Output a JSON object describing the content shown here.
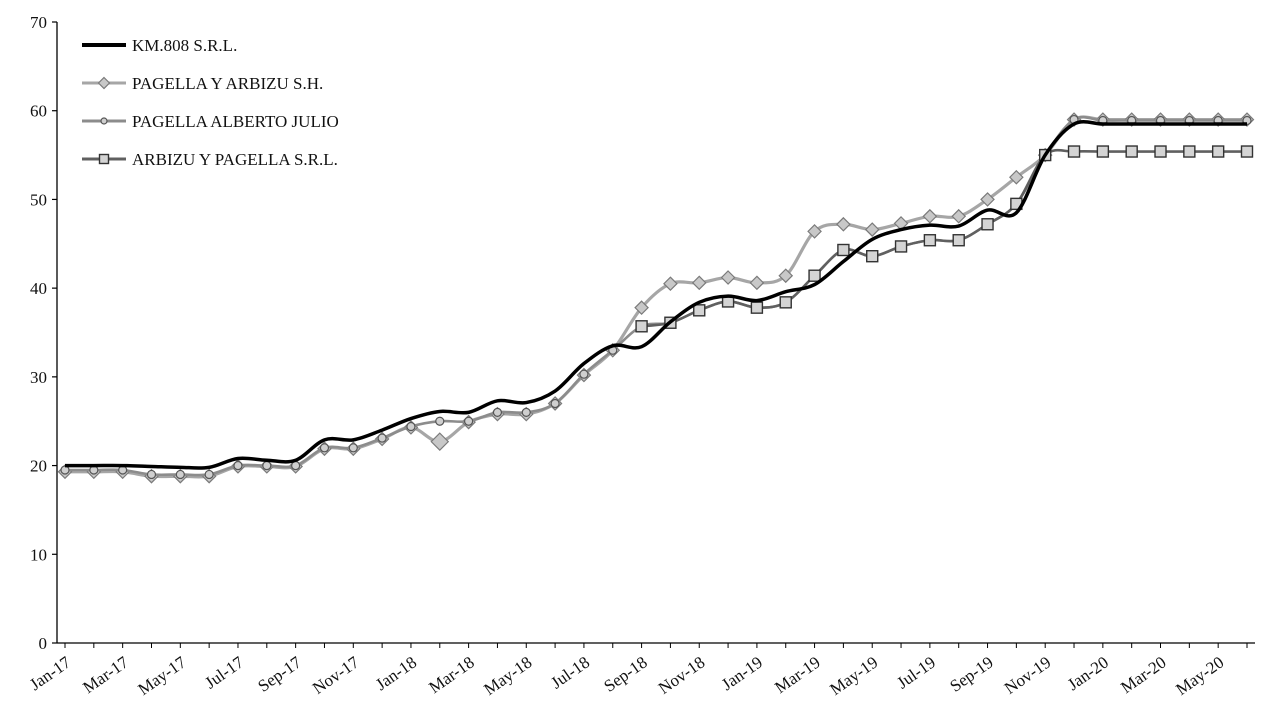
{
  "chart_data": {
    "type": "line",
    "title": "",
    "xlabel": "",
    "ylabel": "",
    "ylim": [
      0,
      70
    ],
    "y_ticks": [
      0,
      10,
      20,
      30,
      40,
      50,
      60,
      70
    ],
    "grid": false,
    "legend_position": "top-left",
    "x": [
      "Jan-17",
      "Feb-17",
      "Mar-17",
      "Apr-17",
      "May-17",
      "Jun-17",
      "Jul-17",
      "Aug-17",
      "Sep-17",
      "Oct-17",
      "Nov-17",
      "Dec-17",
      "Jan-18",
      "Feb-18",
      "Mar-18",
      "Apr-18",
      "May-18",
      "Jun-18",
      "Jul-18",
      "Aug-18",
      "Sep-18",
      "Oct-18",
      "Nov-18",
      "Dec-18",
      "Jan-19",
      "Feb-19",
      "Mar-19",
      "Apr-19",
      "May-19",
      "Jun-19",
      "Jul-19",
      "Aug-19",
      "Sep-19",
      "Oct-19",
      "Nov-19",
      "Dec-19",
      "Jan-20",
      "Feb-20",
      "Mar-20",
      "Apr-20",
      "May-20",
      "Jun-20"
    ],
    "x_tick_labels": [
      "Jan-17",
      "Mar-17",
      "May-17",
      "Jul-17",
      "Sep-17",
      "Nov-17",
      "Jan-18",
      "Mar-18",
      "May-18",
      "Jul-18",
      "Sep-18",
      "Nov-18",
      "Jan-19",
      "Mar-19",
      "May-19",
      "Jul-19",
      "Sep-19",
      "Nov-19",
      "Jan-20",
      "Mar-20",
      "May-20"
    ],
    "series": [
      {
        "name": "KM.808 S.R.L.",
        "color": "#000000",
        "marker": "none",
        "values": [
          20.0,
          20.0,
          20.0,
          19.9,
          19.8,
          19.8,
          20.8,
          20.6,
          20.6,
          22.9,
          22.9,
          24.0,
          25.3,
          26.1,
          26.0,
          27.3,
          27.1,
          28.4,
          31.5,
          33.5,
          33.4,
          36.2,
          38.4,
          39.1,
          38.6,
          39.6,
          40.4,
          43.0,
          45.5,
          46.6,
          47.1,
          47.0,
          48.8,
          48.5,
          55.0,
          58.5,
          58.5,
          58.5,
          58.5,
          58.5,
          58.5,
          58.5
        ]
      },
      {
        "name": "PAGELLA Y ARBIZU S.H.",
        "color": "#a6a6a6",
        "marker": "diamond",
        "values": [
          19.3,
          19.3,
          19.3,
          18.8,
          18.8,
          18.8,
          19.9,
          19.9,
          19.9,
          21.9,
          21.9,
          23.0,
          24.3,
          22.7,
          24.9,
          25.8,
          25.8,
          27.0,
          30.2,
          33.0,
          37.8,
          40.5,
          40.6,
          41.2,
          40.6,
          41.4,
          46.4,
          47.2,
          46.6,
          47.3,
          48.1,
          48.1,
          50.0,
          52.5,
          55.0,
          59.0,
          59.0,
          59.0,
          59.0,
          59.0,
          59.0,
          59.0
        ]
      },
      {
        "name": "PAGELLA ALBERTO JULIO",
        "color": "#8c8c8c",
        "marker": "circle",
        "values": [
          19.5,
          19.5,
          19.5,
          19.0,
          19.0,
          19.0,
          20.0,
          20.0,
          20.0,
          22.0,
          22.0,
          23.1,
          24.4,
          25.0,
          25.0,
          26.0,
          26.0,
          27.0,
          30.3,
          33.0,
          35.7,
          36.1,
          37.5,
          38.5,
          37.8,
          38.4,
          41.4,
          44.3,
          43.6,
          44.7,
          45.4,
          45.4,
          47.2,
          49.5,
          55.0,
          59.0,
          58.9,
          58.9,
          58.9,
          58.9,
          58.9,
          58.9
        ]
      },
      {
        "name": "ARBIZU Y PAGELLA S.R.L.",
        "color": "#606060",
        "marker": "square",
        "values": [
          null,
          null,
          null,
          null,
          null,
          null,
          null,
          null,
          null,
          null,
          null,
          null,
          null,
          null,
          null,
          null,
          null,
          null,
          null,
          null,
          35.7,
          36.1,
          37.5,
          38.5,
          37.8,
          38.4,
          41.4,
          44.3,
          43.6,
          44.7,
          45.4,
          45.4,
          47.2,
          49.5,
          55.0,
          55.4,
          55.4,
          55.4,
          55.4,
          55.4,
          55.4,
          55.4
        ]
      }
    ]
  }
}
